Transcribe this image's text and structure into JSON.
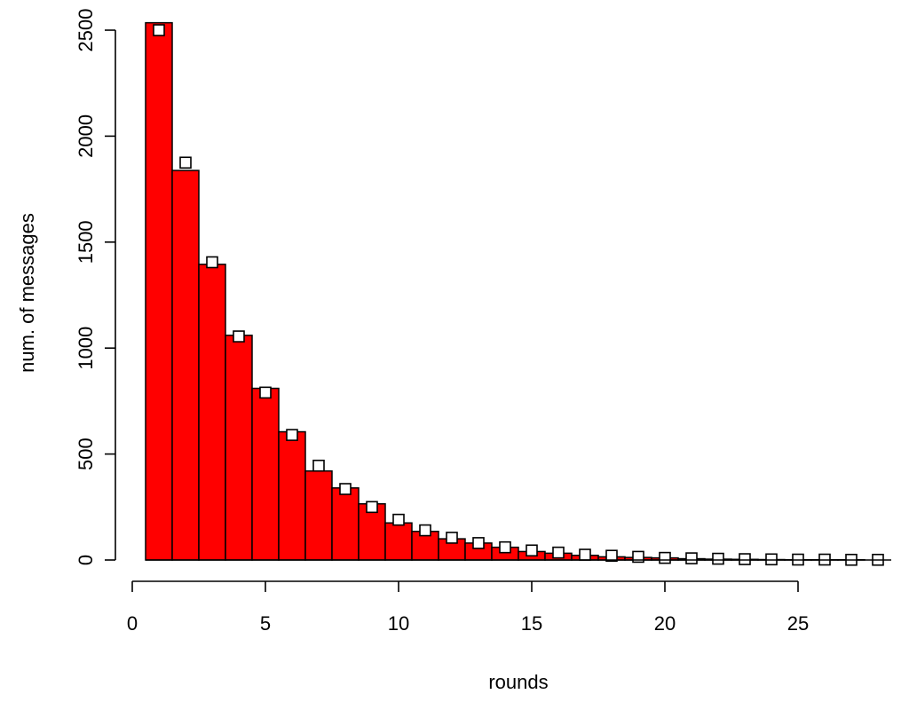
{
  "chart_data": {
    "type": "bar",
    "title": "",
    "xlabel": "rounds",
    "ylabel": "num. of messages",
    "xlim": [
      0,
      28.5
    ],
    "ylim": [
      0,
      2540
    ],
    "x_ticks": [
      0,
      5,
      10,
      15,
      20,
      25
    ],
    "y_ticks": [
      0,
      500,
      1000,
      1500,
      2000,
      2500
    ],
    "grid": false,
    "bar_color": "#ff0000",
    "bar_border_color": "#000000",
    "marker_style": "open-square",
    "series": [
      {
        "kind": "bar",
        "x": [
          1,
          2,
          3,
          4,
          5,
          6,
          7,
          8,
          9,
          10,
          11,
          12,
          13,
          14,
          15,
          16,
          17,
          18,
          19,
          20,
          21,
          22,
          23,
          24,
          25,
          26,
          27,
          28
        ],
        "values": [
          2535,
          1838,
          1395,
          1060,
          810,
          605,
          420,
          340,
          265,
          175,
          135,
          100,
          80,
          60,
          40,
          32,
          22,
          15,
          12,
          10,
          6,
          4,
          3,
          2,
          1,
          1,
          1,
          0
        ]
      },
      {
        "kind": "points",
        "x": [
          1,
          2,
          3,
          4,
          5,
          6,
          7,
          8,
          9,
          10,
          11,
          12,
          13,
          14,
          15,
          16,
          17,
          18,
          19,
          20,
          21,
          22,
          23,
          24,
          25,
          26,
          27,
          28
        ],
        "values": [
          2500,
          1875,
          1405,
          1055,
          790,
          590,
          445,
          335,
          250,
          190,
          140,
          105,
          80,
          60,
          45,
          35,
          25,
          20,
          15,
          10,
          8,
          6,
          4,
          3,
          2,
          2,
          1,
          1
        ]
      }
    ]
  }
}
